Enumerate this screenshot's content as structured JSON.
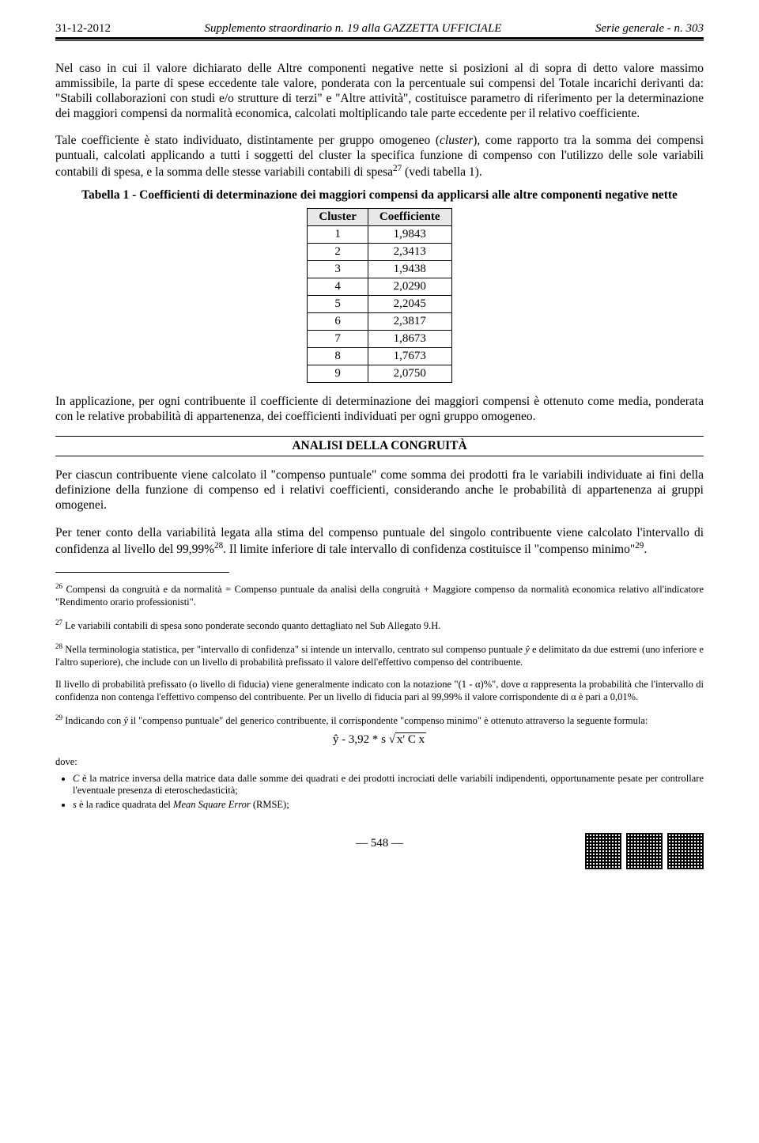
{
  "header": {
    "date": "31-12-2012",
    "center": "Supplemento straordinario n. 19 alla GAZZETTA UFFICIALE",
    "right": "Serie generale - n. 303"
  },
  "para1": "Nel caso in cui il valore dichiarato delle Altre componenti negative nette si posizioni al di sopra di detto valore massimo ammissibile, la parte di spese eccedente tale valore, ponderata con la percentuale sui compensi del Totale incarichi derivanti da: \"Stabili collaborazioni con studi e/o strutture di terzi\" e \"Altre attività\", costituisce parametro di riferimento per la determinazione dei maggiori compensi da normalità economica, calcolati moltiplicando tale parte eccedente per il relativo coefficiente.",
  "para2_a": "Tale coefficiente è stato individuato, distintamente per gruppo omogeneo (",
  "para2_em": "cluster",
  "para2_b": "), come rapporto tra la somma dei compensi puntuali, calcolati applicando a tutti i soggetti del cluster la specifica funzione di compenso con l'utilizzo delle sole variabili contabili di spesa, e la somma delle stesse variabili contabili di spesa",
  "para2_c": " (vedi tabella 1).",
  "table": {
    "caption": "Tabella 1 - Coefficienti di determinazione dei maggiori compensi da applicarsi alle altre componenti negative nette",
    "col1": "Cluster",
    "col2": "Coefficiente",
    "rows": [
      {
        "c": "1",
        "v": "1,9843"
      },
      {
        "c": "2",
        "v": "2,3413"
      },
      {
        "c": "3",
        "v": "1,9438"
      },
      {
        "c": "4",
        "v": "2,0290"
      },
      {
        "c": "5",
        "v": "2,2045"
      },
      {
        "c": "6",
        "v": "2,3817"
      },
      {
        "c": "7",
        "v": "1,8673"
      },
      {
        "c": "8",
        "v": "1,7673"
      },
      {
        "c": "9",
        "v": "2,0750"
      }
    ]
  },
  "para3": "In applicazione, per ogni contribuente il coefficiente di determinazione dei maggiori compensi è ottenuto come media, ponderata con le relative probabilità di appartenenza, dei coefficienti individuati per ogni gruppo omogeneo.",
  "section_title": "ANALISI DELLA CONGRUITÀ",
  "para4": "Per ciascun contribuente viene calcolato il \"compenso puntuale\" come somma dei prodotti fra le variabili individuate ai fini della definizione della funzione di compenso ed i relativi coefficienti, considerando anche le probabilità di appartenenza ai gruppi omogenei.",
  "para5_a": "Per tener conto della variabilità legata alla stima del compenso puntuale del singolo contribuente viene calcolato l'intervallo di confidenza al livello del 99,99%",
  "para5_b": ". Il limite inferiore di tale intervallo di confidenza costituisce il \"compenso minimo\"",
  "para5_c": ".",
  "fn26": " Compensi da congruità e da normalità = Compenso puntuale da analisi della congruità + Maggiore compenso da normalità economica relativo all'indicatore \"Rendimento orario professionisti\".",
  "fn27": " Le variabili contabili di spesa sono ponderate secondo quanto dettagliato nel Sub Allegato 9.H.",
  "fn28_a": " Nella terminologia statistica, per \"intervallo di confidenza\" si intende un intervallo, centrato sul compenso puntuale ",
  "fn28_b": " e delimitato da due estremi (uno inferiore e l'altro superiore), che include con un livello di probabilità prefissato il valore dell'effettivo compenso del contribuente.",
  "fn28_p2": "Il livello di probabilità prefissato (o livello di fiducia) viene generalmente indicato con la notazione \"(1 - α)%\", dove α rappresenta la probabilità che l'intervallo di confidenza non contenga l'effettivo compenso del contribuente. Per un livello di fiducia pari al 99,99% il valore corrispondente di α è pari a 0,01%.",
  "fn29_a": " Indicando con ",
  "fn29_b": " il \"compenso puntuale\" del generico contribuente, il corrispondente \"compenso minimo\" è ottenuto attraverso la seguente formula:",
  "formula_left": "ŷ - 3,92 * s ",
  "formula_sqrt": "x' C x",
  "dove": "dove:",
  "bullet1_a": "C ",
  "bullet1_b": "è la matrice inversa della matrice data dalle somme dei quadrati e dei prodotti incrociati delle variabili indipendenti, opportunamente pesate per controllare l'eventuale presenza di eteroschedasticità;",
  "bullet2_a": "s ",
  "bullet2_b": "è la radice quadrata del ",
  "bullet2_em": "Mean Square Error",
  "bullet2_c": " (RMSE);",
  "page_number": "— 548 —",
  "yhat": "ŷ"
}
